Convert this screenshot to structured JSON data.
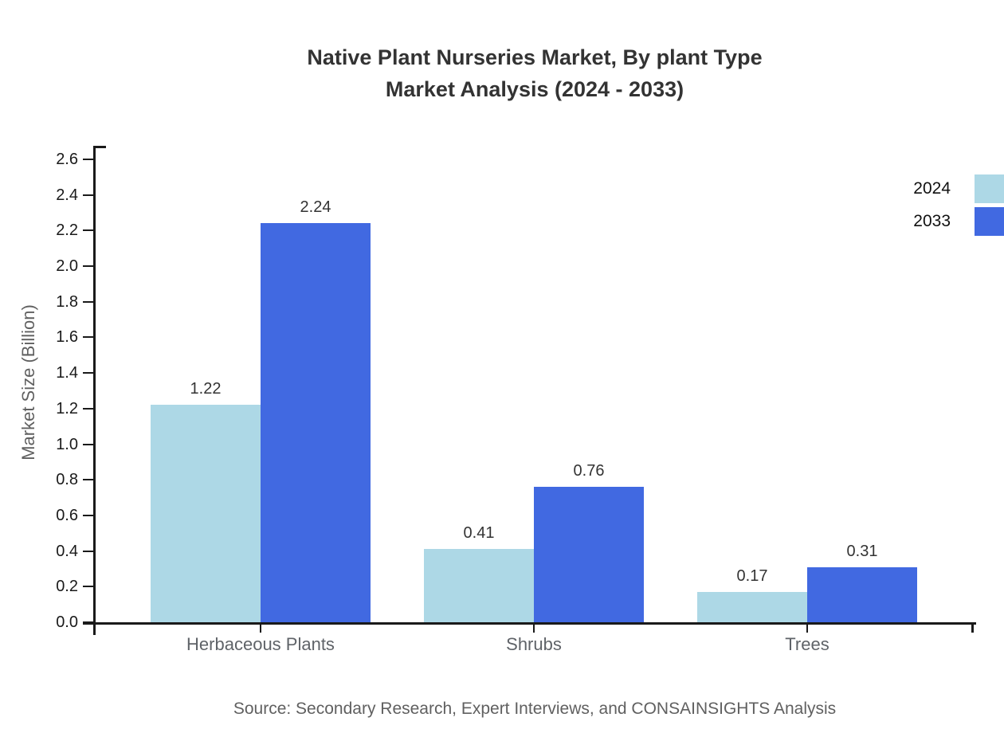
{
  "chart_data": {
    "type": "bar",
    "title_line1": "Native Plant Nurseries Market, By plant Type",
    "title_line2": "Market Analysis (2024 - 2033)",
    "ylabel": "Market Size (Billion)",
    "xlabel": "",
    "categories": [
      "Herbaceous Plants",
      "Shrubs",
      "Trees"
    ],
    "series": [
      {
        "name": "2024",
        "color": "#ADD8E6",
        "values": [
          1.22,
          0.41,
          0.17
        ]
      },
      {
        "name": "2033",
        "color": "#4169E1",
        "values": [
          2.24,
          0.76,
          0.31
        ]
      }
    ],
    "y_ticks": [
      0.0,
      0.2,
      0.4,
      0.6,
      0.8,
      1.0,
      1.2,
      1.4,
      1.6,
      1.8,
      2.0,
      2.2,
      2.4,
      2.6
    ],
    "ylim": [
      0,
      2.675
    ],
    "grid": false,
    "legend_position": "right",
    "value_labels_shown": true,
    "colors": {
      "axis": "#1a1a1a",
      "title_text": "#333333",
      "muted_text": "#606060",
      "value_label_text": "#333333",
      "background": "#ffffff"
    },
    "source": "Source: Secondary Research, Expert Interviews, and CONSAINSIGHTS Analysis"
  }
}
